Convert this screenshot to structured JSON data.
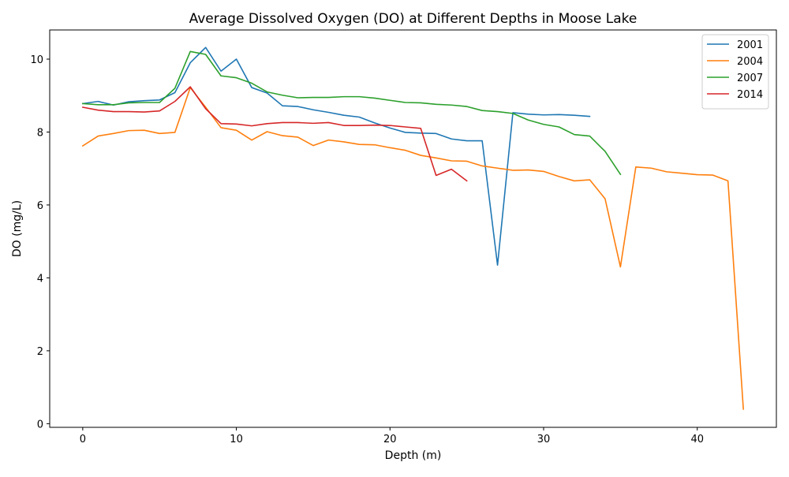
{
  "chart_data": {
    "type": "line",
    "title": "Average Dissolved Oxygen (DO) at Different Depths in Moose Lake",
    "xlabel": "Depth (m)",
    "ylabel": "DO (mg/L)",
    "xlim": [
      -2.15,
      45.15
    ],
    "ylim": [
      -0.1,
      10.8
    ],
    "xticks": [
      0,
      10,
      20,
      30,
      40
    ],
    "yticks": [
      0,
      2,
      4,
      6,
      8,
      10
    ],
    "grid": false,
    "legend_position": "top-right",
    "series": [
      {
        "name": "2001",
        "color": "#1f77b4",
        "x": [
          0,
          1,
          2,
          3,
          4,
          5,
          6,
          7,
          8,
          9,
          10,
          11,
          12,
          13,
          14,
          15,
          16,
          17,
          18,
          19,
          20,
          21,
          22,
          23,
          24,
          25,
          26,
          27,
          28,
          29,
          30,
          31,
          32,
          33
        ],
        "y": [
          8.78,
          8.84,
          8.74,
          8.83,
          8.86,
          8.88,
          9.08,
          9.9,
          10.32,
          9.67,
          10.0,
          9.22,
          9.07,
          8.72,
          8.7,
          8.61,
          8.54,
          8.46,
          8.41,
          8.25,
          8.11,
          7.99,
          7.97,
          7.96,
          7.81,
          7.76,
          7.76,
          4.35,
          8.53,
          8.49,
          8.47,
          8.48,
          8.46,
          8.43
        ]
      },
      {
        "name": "2004",
        "color": "#ff7f0e",
        "x": [
          0,
          1,
          2,
          3,
          4,
          5,
          6,
          7,
          8,
          9,
          10,
          11,
          12,
          13,
          14,
          15,
          16,
          17,
          18,
          19,
          20,
          21,
          22,
          23,
          24,
          25,
          26,
          27,
          28,
          29,
          30,
          31,
          32,
          33,
          34,
          35,
          36,
          37,
          38,
          39,
          40,
          41,
          42,
          43
        ],
        "y": [
          7.62,
          7.89,
          7.96,
          8.04,
          8.05,
          7.96,
          7.99,
          9.22,
          8.68,
          8.12,
          8.05,
          7.78,
          8.01,
          7.9,
          7.86,
          7.63,
          7.78,
          7.73,
          7.66,
          7.65,
          7.57,
          7.5,
          7.36,
          7.29,
          7.21,
          7.2,
          7.07,
          7.01,
          6.95,
          6.96,
          6.92,
          6.78,
          6.66,
          6.69,
          6.17,
          4.3,
          7.04,
          7.01,
          6.91,
          6.87,
          6.83,
          6.82,
          6.66,
          0.4
        ]
      },
      {
        "name": "2007",
        "color": "#2ca02c",
        "x": [
          0,
          1,
          2,
          3,
          4,
          5,
          6,
          7,
          8,
          9,
          10,
          11,
          12,
          13,
          14,
          15,
          16,
          17,
          18,
          19,
          20,
          21,
          22,
          23,
          24,
          25,
          26,
          27,
          28,
          29,
          30,
          31,
          32,
          33,
          34,
          35
        ],
        "y": [
          8.78,
          8.75,
          8.75,
          8.8,
          8.81,
          8.81,
          9.2,
          10.21,
          10.13,
          9.54,
          9.49,
          9.34,
          9.1,
          9.01,
          8.94,
          8.95,
          8.95,
          8.97,
          8.97,
          8.93,
          8.87,
          8.81,
          8.8,
          8.76,
          8.74,
          8.7,
          8.59,
          8.56,
          8.51,
          8.33,
          8.21,
          8.14,
          7.93,
          7.89,
          7.47,
          6.84
        ]
      },
      {
        "name": "2014",
        "color": "#d62728",
        "x": [
          0,
          1,
          2,
          3,
          4,
          5,
          6,
          7,
          8,
          9,
          10,
          11,
          12,
          13,
          14,
          15,
          16,
          17,
          18,
          19,
          20,
          21,
          22,
          23,
          24,
          25
        ],
        "y": [
          8.68,
          8.6,
          8.56,
          8.56,
          8.55,
          8.58,
          8.84,
          9.24,
          8.64,
          8.23,
          8.22,
          8.17,
          8.23,
          8.26,
          8.26,
          8.24,
          8.26,
          8.18,
          8.18,
          8.19,
          8.18,
          8.14,
          8.1,
          6.81,
          6.98,
          6.66
        ]
      }
    ]
  }
}
